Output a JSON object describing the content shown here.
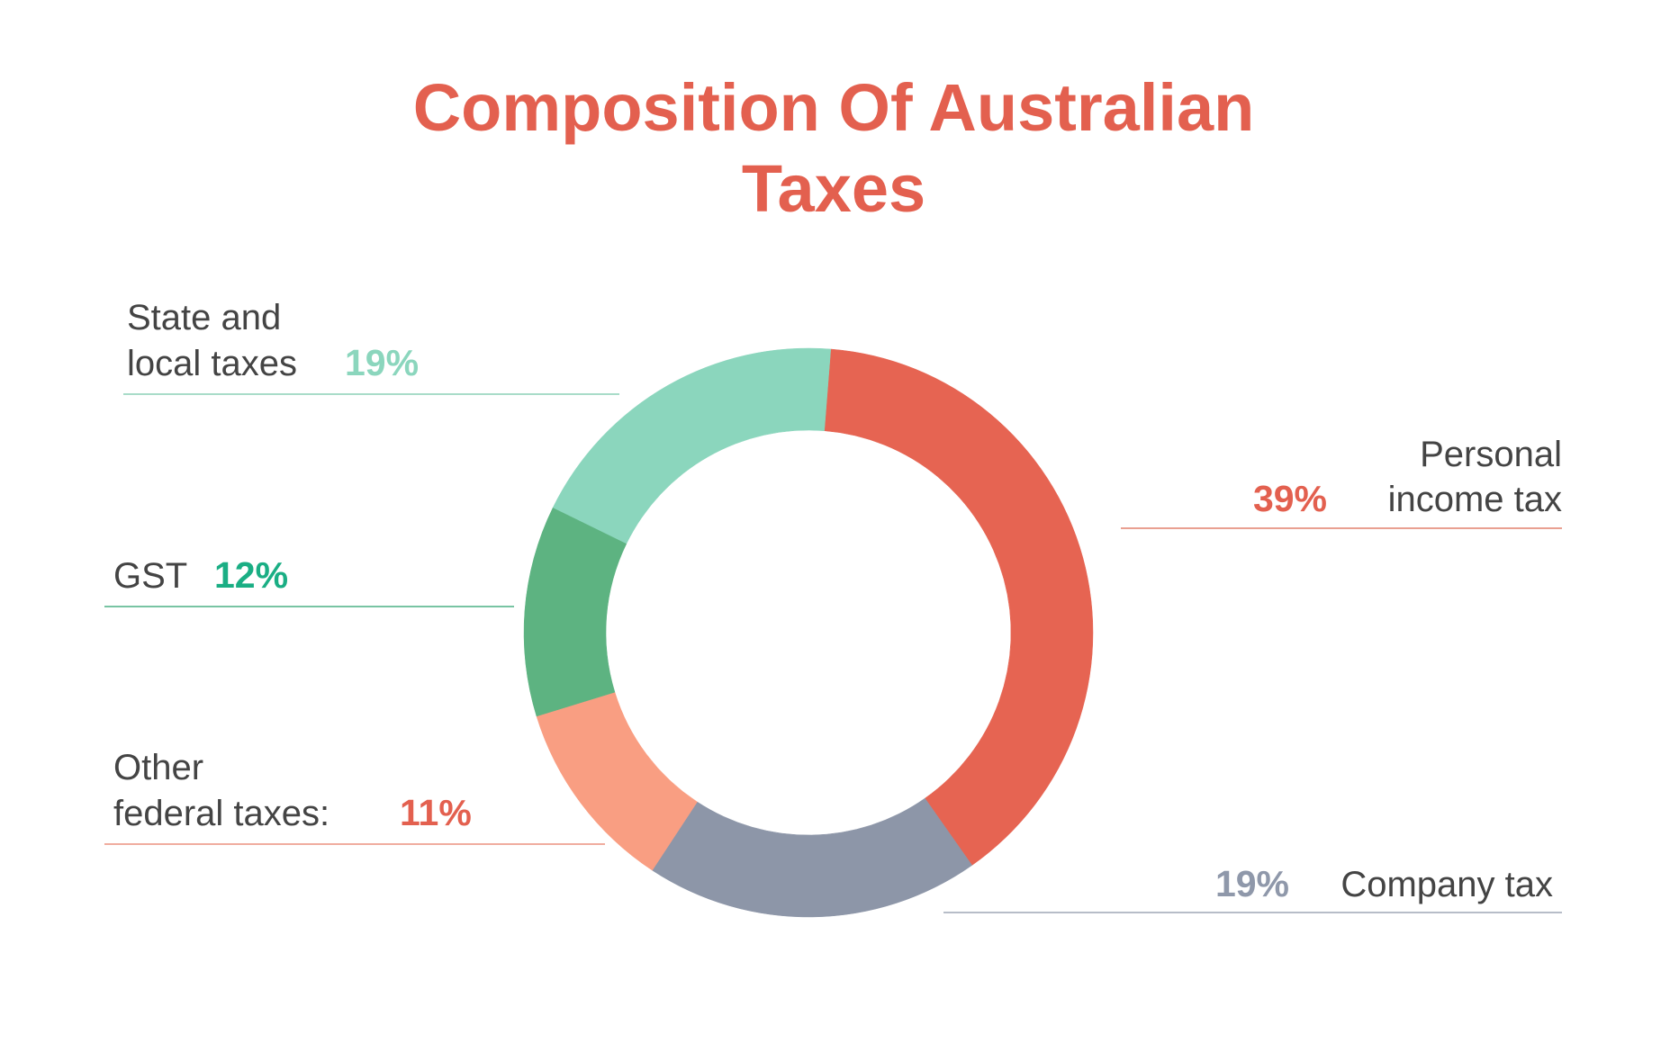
{
  "chart_data": {
    "type": "pie",
    "title": [
      "Composition Of Australian",
      "Taxes"
    ],
    "slices": [
      {
        "key": "personal",
        "label_lines": [
          "Personal",
          "income tax"
        ],
        "percent_label": "39%",
        "value": 39,
        "color": "#e66452",
        "pct_color": "#e3604f",
        "line_color": "#e9a091"
      },
      {
        "key": "company",
        "label_lines": [
          "Company tax"
        ],
        "percent_label": "19%",
        "value": 19,
        "color": "#8d96a8",
        "pct_color": "#8f98aa",
        "line_color": "#b7bdc8"
      },
      {
        "key": "other-federal",
        "label_lines": [
          "Other",
          "federal taxes:"
        ],
        "percent_label": "11%",
        "value": 11,
        "color": "#f99e82",
        "pct_color": "#e3604f",
        "line_color": "#f0ad9f"
      },
      {
        "key": "gst",
        "label_lines": [
          "GST"
        ],
        "percent_label": "12%",
        "value": 12,
        "color": "#5db381",
        "pct_color": "#1aae84",
        "line_color": "#78c4a3"
      },
      {
        "key": "state-local",
        "label_lines": [
          "State and",
          "local taxes"
        ],
        "percent_label": "19%",
        "value": 19,
        "color": "#8bd6bd",
        "pct_color": "#8bd6bd",
        "line_color": "#a9dcc9"
      }
    ]
  }
}
